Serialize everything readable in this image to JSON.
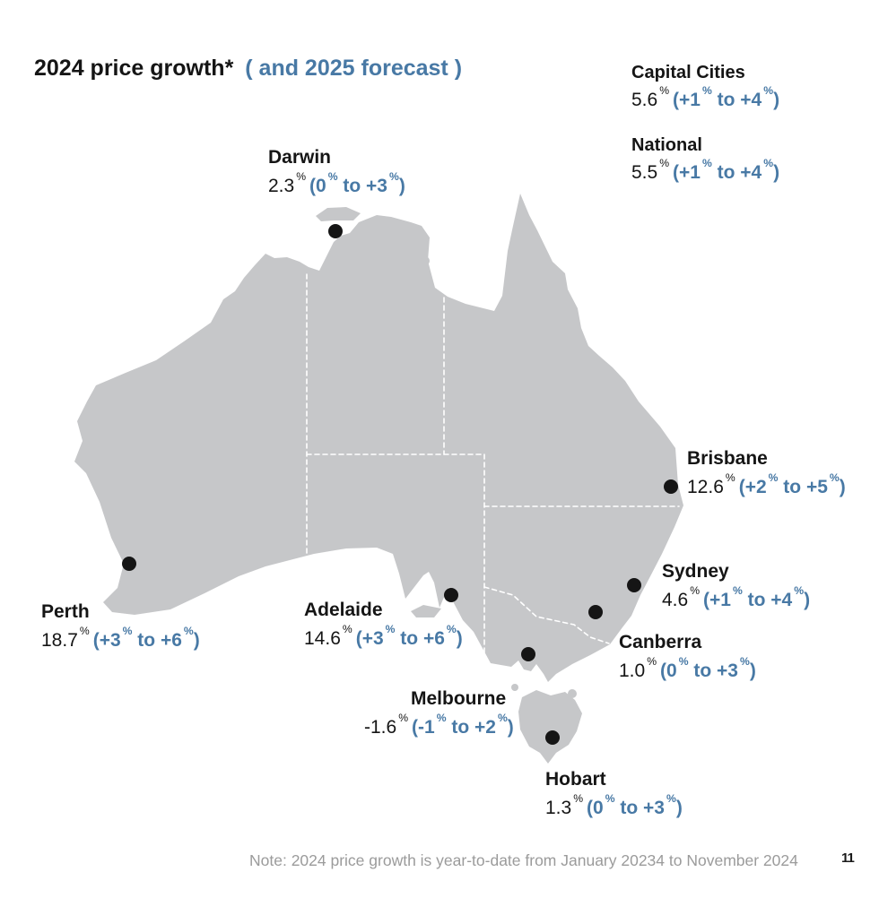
{
  "title": {
    "main": "2024 price growth*",
    "forecast_suffix": "( and 2025 forecast )"
  },
  "summary": [
    {
      "label": "Capital Cities",
      "growth": "5.6%",
      "forecast": "(+1% to +4%)"
    },
    {
      "label": "National",
      "growth": "5.5%",
      "forecast": "(+1% to +4%)"
    }
  ],
  "cities": [
    {
      "name": "Darwin",
      "growth": "2.3%",
      "forecast": "(0% to +3%)"
    },
    {
      "name": "Perth",
      "growth": "18.7%",
      "forecast": "(+3% to +6%)"
    },
    {
      "name": "Adelaide",
      "growth": "14.6%",
      "forecast": "(+3% to +6%)"
    },
    {
      "name": "Melbourne",
      "growth": "-1.6%",
      "forecast": "(-1% to +2%)"
    },
    {
      "name": "Hobart",
      "growth": "1.3%",
      "forecast": "(0% to +3%)"
    },
    {
      "name": "Canberra",
      "growth": "1.0%",
      "forecast": "(0% to +3%)"
    },
    {
      "name": "Sydney",
      "growth": "4.6%",
      "forecast": "(+1% to +4%)"
    },
    {
      "name": "Brisbane",
      "growth": "12.6%",
      "forecast": "(+2% to +5%)"
    }
  ],
  "note": "Note: 2024 price growth is year-to-date from January 20234 to November 2024",
  "page_number": "11",
  "colors": {
    "forecast_blue": "#4879a5",
    "map_gray": "#c6c7c9",
    "marker_black": "#151515"
  }
}
